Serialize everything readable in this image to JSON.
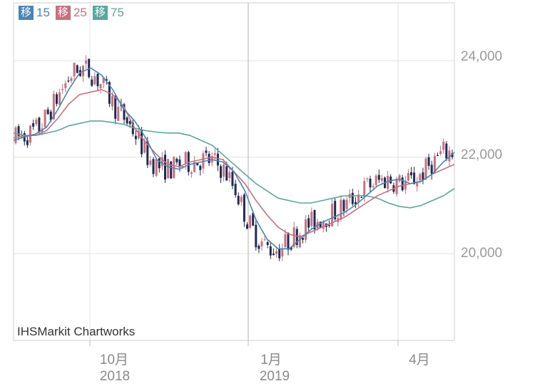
{
  "legend": [
    {
      "badge": "移",
      "label": "15",
      "color": "#4a86b5"
    },
    {
      "badge": "移",
      "label": "25",
      "color": "#c8707f"
    },
    {
      "badge": "移",
      "label": "75",
      "color": "#5ca79d"
    }
  ],
  "credit": "IHSMarkit Chartworks",
  "chart_data": {
    "type": "candlestick",
    "y_ticks": [
      "24,000",
      "22,000",
      "20,000"
    ],
    "x_ticks": [
      {
        "month": "10月",
        "year": "2018"
      },
      {
        "month": "1月",
        "year": "2019"
      },
      {
        "month": "4月",
        "year": ""
      }
    ],
    "ylim": [
      18200,
      25200
    ],
    "grid": true,
    "up_color": "#c8707f",
    "down_color": "#1f2a55",
    "ma_colors": {
      "ma15": "#4a86b5",
      "ma25": "#c8707f",
      "ma75": "#5ca79d"
    },
    "ma15": [
      22350,
      22420,
      22480,
      22620,
      22980,
      23400,
      23750,
      23850,
      23700,
      23400,
      23000,
      22750,
      22400,
      21950,
      21800,
      21750,
      21850,
      21900,
      21950,
      21900,
      21700,
      21300,
      20700,
      20300,
      20100,
      20100,
      20300,
      20500,
      20650,
      20750,
      20850,
      21000,
      21200,
      21400,
      21500,
      21550,
      21450,
      21500,
      21650,
      21900,
      22100
    ],
    "ma25": [
      22400,
      22450,
      22450,
      22550,
      22800,
      23100,
      23300,
      23350,
      23400,
      23300,
      23050,
      22600,
      22300,
      22050,
      21850,
      21800,
      21900,
      21950,
      22000,
      21950,
      21700,
      21450,
      21100,
      20800,
      20550,
      20400,
      20350,
      20450,
      20550,
      20650,
      20750,
      20900,
      21050,
      21200,
      21300,
      21400,
      21450,
      21500,
      21650,
      21750,
      21850
    ],
    "ma75": [
      22500,
      22450,
      22450,
      22500,
      22550,
      22650,
      22700,
      22750,
      22750,
      22720,
      22680,
      22600,
      22550,
      22520,
      22500,
      22500,
      22450,
      22350,
      22250,
      22050,
      21850,
      21650,
      21450,
      21300,
      21150,
      21100,
      21050,
      21050,
      21100,
      21150,
      21200,
      21200,
      21200,
      21150,
      21050,
      20980,
      20950,
      21000,
      21100,
      21200,
      21350
    ]
  }
}
